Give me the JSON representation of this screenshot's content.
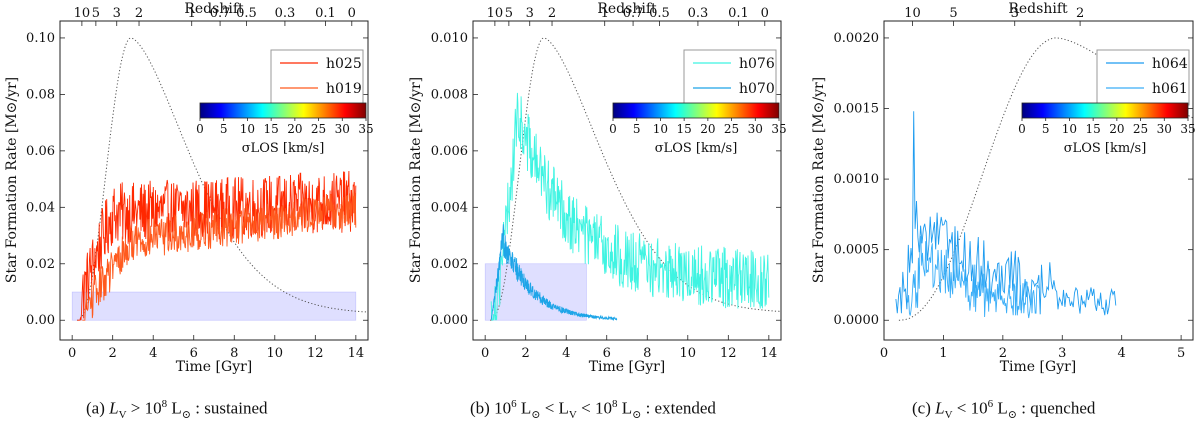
{
  "figure": {
    "top_axis_label": "Redshift",
    "x_axis_label": "Time [Gyr]",
    "y_axis_label": "Star Formation Rate [M⊙/yr]",
    "colorbar_label": "σLOS [km/s]",
    "colorbar_ticks": [
      "0",
      "5",
      "10",
      "15",
      "20",
      "25",
      "30",
      "35"
    ]
  },
  "chart_data": [
    {
      "type": "line",
      "panel": "a",
      "caption": "(a) LV > 10^8 L⊙ : sustained",
      "xlabel": "Time [Gyr]",
      "ylabel": "Star Formation Rate [M⊙/yr]",
      "xlim": [
        -0.6,
        14.6
      ],
      "ylim": [
        -0.007,
        0.106
      ],
      "x_ticks": [
        0,
        2,
        4,
        6,
        8,
        10,
        12,
        14
      ],
      "y_ticks": [
        0.0,
        0.02,
        0.04,
        0.06,
        0.08,
        0.1
      ],
      "y_tick_labels": [
        "0.00",
        "0.02",
        "0.04",
        "0.06",
        "0.08",
        "0.10"
      ],
      "redshift_ticks": [
        {
          "label": "10",
          "t": 0.48
        },
        {
          "label": "5",
          "t": 1.17
        },
        {
          "label": "3",
          "t": 2.2
        },
        {
          "label": "2",
          "t": 3.3
        },
        {
          "label": "1",
          "t": 5.9
        },
        {
          "label": "0.7",
          "t": 7.3
        },
        {
          "label": "0.5",
          "t": 8.6
        },
        {
          "label": "0.3",
          "t": 10.5
        },
        {
          "label": "0.1",
          "t": 12.5
        },
        {
          "label": "0",
          "t": 13.8
        }
      ],
      "shaded_region": {
        "x": [
          0,
          14
        ],
        "y": [
          0,
          0.01
        ]
      },
      "reference_curve": {
        "peak_t": 2.9,
        "peak_sfr": 0.1,
        "end_sfr": 0.0023
      },
      "series": [
        {
          "name": "h025",
          "color": "#ff2800",
          "x_range": [
            0.25,
            14.0
          ],
          "rise_end": 2.0,
          "level_start": 0.036,
          "level_end": 0.041,
          "noise": 0.011
        },
        {
          "name": "h019",
          "color": "#ff5a1e",
          "x_range": [
            0.5,
            14.0
          ],
          "rise_end": 3.0,
          "level_start": 0.025,
          "level_end": 0.039,
          "noise": 0.007
        }
      ]
    },
    {
      "type": "line",
      "panel": "b",
      "caption": "(b) 10^6 L⊙ < LV < 10^8 L⊙ : extended",
      "xlabel": "Time [Gyr]",
      "ylabel": "Star Formation Rate [M⊙/yr]",
      "xlim": [
        -0.6,
        14.6
      ],
      "ylim": [
        -0.0007,
        0.0106
      ],
      "x_ticks": [
        0,
        2,
        4,
        6,
        8,
        10,
        12,
        14
      ],
      "y_ticks": [
        0.0,
        0.002,
        0.004,
        0.006,
        0.008,
        0.01
      ],
      "y_tick_labels": [
        "0.000",
        "0.002",
        "0.004",
        "0.006",
        "0.008",
        "0.010"
      ],
      "redshift_ticks": [
        {
          "label": "10",
          "t": 0.48
        },
        {
          "label": "5",
          "t": 1.17
        },
        {
          "label": "3",
          "t": 2.2
        },
        {
          "label": "2",
          "t": 3.3
        },
        {
          "label": "1",
          "t": 5.9
        },
        {
          "label": "0.7",
          "t": 7.3
        },
        {
          "label": "0.5",
          "t": 8.6
        },
        {
          "label": "0.3",
          "t": 10.5
        },
        {
          "label": "0.1",
          "t": 12.5
        },
        {
          "label": "0",
          "t": 13.8
        }
      ],
      "shaded_region": {
        "x": [
          0,
          5
        ],
        "y": [
          0,
          0.002
        ]
      },
      "reference_curve": {
        "peak_t": 2.9,
        "peak_sfr": 0.01,
        "end_sfr": 0.00025
      },
      "series": [
        {
          "name": "h076",
          "color": "#3ff4e2",
          "x_range": [
            0.3,
            14.0
          ],
          "peak_t": 1.6,
          "peak": 0.0072,
          "tail": 0.0013,
          "noise": 0.0011
        },
        {
          "name": "h070",
          "color": "#1ea5e8",
          "x_range": [
            0.3,
            6.5
          ],
          "peak_t": 0.9,
          "peak": 0.0028,
          "decay": 1.4,
          "noise": 0.0006
        }
      ]
    },
    {
      "type": "line",
      "panel": "c",
      "caption": "(c) LV < 10^6 L⊙ : quenched",
      "xlabel": "Time [Gyr]",
      "ylabel": "Star Formation Rate [M⊙/yr]",
      "xlim": [
        0,
        5.2
      ],
      "ylim": [
        -0.00014,
        0.00212
      ],
      "x_ticks": [
        0,
        1,
        2,
        3,
        4,
        5
      ],
      "y_ticks": [
        0.0,
        0.0005,
        0.001,
        0.0015,
        0.002
      ],
      "y_tick_labels": [
        "0.0000",
        "0.0005",
        "0.0010",
        "0.0015",
        "0.0020"
      ],
      "redshift_ticks": [
        {
          "label": "10",
          "t": 0.48
        },
        {
          "label": "5",
          "t": 1.17
        },
        {
          "label": "3",
          "t": 2.2
        },
        {
          "label": "2",
          "t": 3.3
        }
      ],
      "reference_curve": {
        "peak_t": 2.9,
        "peak_sfr": 0.002,
        "end_sfr": 0.0011
      },
      "series": [
        {
          "name": "h064",
          "color": "#1e9cf0",
          "x_range": [
            0.2,
            3.9
          ],
          "spike_t": 0.5,
          "spike": 0.00148,
          "decay": 1.8,
          "noise": 0.00022
        },
        {
          "name": "h061",
          "color": "#3aaef8",
          "x_range": [
            0.4,
            2.6
          ],
          "spike_t": 0.6,
          "spike": 0.00095,
          "decay": 1.3,
          "noise": 0.00018
        }
      ]
    }
  ]
}
